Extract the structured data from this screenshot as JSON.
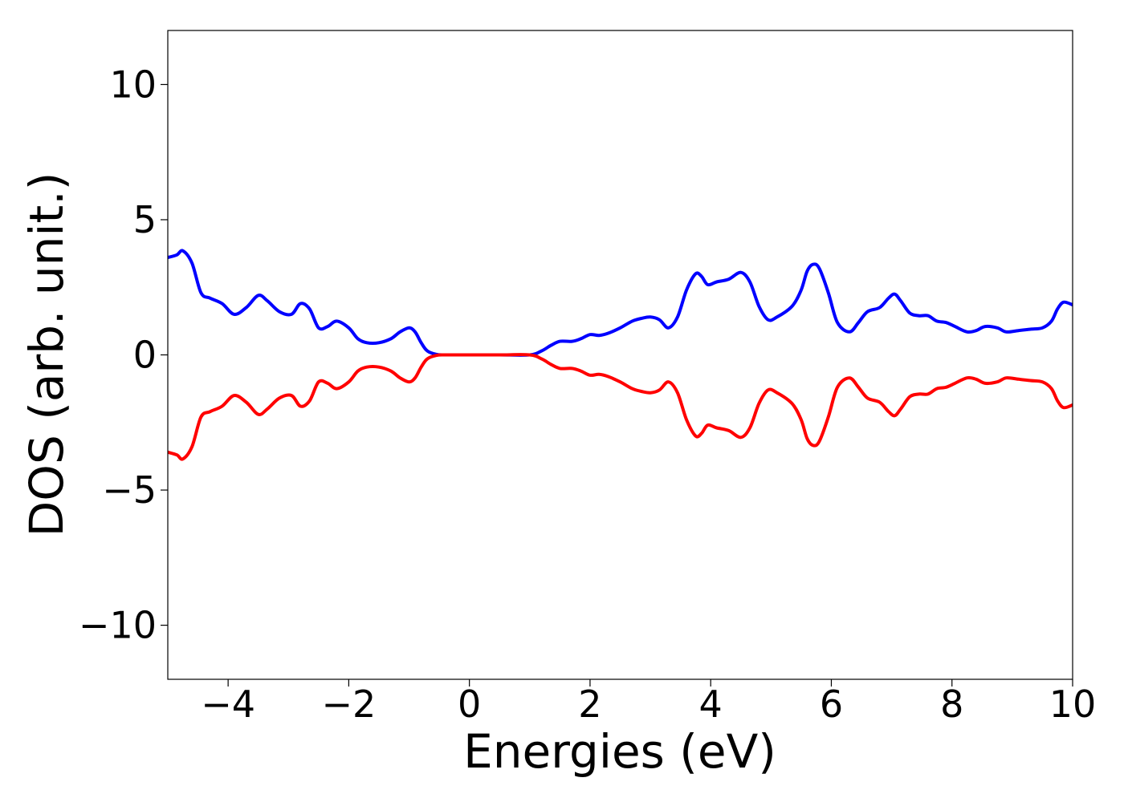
{
  "chart_data": {
    "type": "line",
    "title": "",
    "xlabel": "Energies (eV)",
    "ylabel": "DOS (arb. unit.)",
    "xlim": [
      -5,
      10
    ],
    "ylim": [
      -12,
      12
    ],
    "xticks": [
      -4,
      -2,
      0,
      2,
      4,
      6,
      8,
      10
    ],
    "xtick_labels": [
      "−4",
      "−2",
      "0",
      "2",
      "4",
      "6",
      "8",
      "10"
    ],
    "yticks": [
      10,
      5,
      0,
      -5,
      -10
    ],
    "ytick_labels": [
      "10",
      "5",
      "0",
      "−5",
      "−10"
    ],
    "grid": false,
    "legend": "none",
    "x": [
      -5.0,
      -4.85,
      -4.75,
      -4.6,
      -4.45,
      -4.3,
      -4.1,
      -3.9,
      -3.7,
      -3.5,
      -3.35,
      -3.15,
      -2.95,
      -2.8,
      -2.65,
      -2.5,
      -2.35,
      -2.2,
      -2.0,
      -1.85,
      -1.7,
      -1.5,
      -1.3,
      -1.15,
      -1.0,
      -0.9,
      -0.8,
      -0.7,
      -0.55,
      -0.4,
      0.0,
      0.5,
      1.0,
      1.2,
      1.35,
      1.5,
      1.7,
      1.85,
      2.0,
      2.15,
      2.3,
      2.5,
      2.7,
      2.85,
      3.0,
      3.15,
      3.3,
      3.45,
      3.6,
      3.75,
      3.85,
      3.95,
      4.1,
      4.3,
      4.5,
      4.65,
      4.8,
      4.95,
      5.1,
      5.35,
      5.5,
      5.6,
      5.7,
      5.8,
      5.95,
      6.1,
      6.3,
      6.45,
      6.6,
      6.8,
      6.95,
      7.05,
      7.15,
      7.3,
      7.45,
      7.6,
      7.75,
      7.9,
      8.05,
      8.25,
      8.4,
      8.55,
      8.75,
      8.9,
      9.1,
      9.3,
      9.5,
      9.65,
      9.75,
      9.85,
      10.0
    ],
    "series": [
      {
        "color": "#0000ff",
        "values": [
          3.6,
          3.7,
          3.85,
          3.4,
          2.3,
          2.1,
          1.9,
          1.5,
          1.75,
          2.2,
          2.0,
          1.6,
          1.5,
          1.9,
          1.7,
          1.0,
          1.05,
          1.25,
          1.0,
          0.6,
          0.45,
          0.45,
          0.6,
          0.85,
          1.0,
          0.85,
          0.45,
          0.15,
          0.02,
          0.0,
          0.0,
          0.0,
          0.0,
          0.15,
          0.35,
          0.5,
          0.5,
          0.6,
          0.75,
          0.72,
          0.8,
          1.0,
          1.25,
          1.35,
          1.4,
          1.3,
          1.0,
          1.4,
          2.4,
          3.0,
          2.9,
          2.6,
          2.7,
          2.8,
          3.05,
          2.7,
          1.8,
          1.3,
          1.4,
          1.8,
          2.4,
          3.1,
          3.35,
          3.2,
          2.3,
          1.2,
          0.85,
          1.2,
          1.6,
          1.75,
          2.1,
          2.25,
          2.0,
          1.55,
          1.45,
          1.45,
          1.25,
          1.2,
          1.05,
          0.85,
          0.9,
          1.05,
          1.0,
          0.85,
          0.9,
          0.95,
          1.0,
          1.25,
          1.7,
          1.95,
          1.85
        ]
      },
      {
        "color": "#ff0000",
        "values": [
          -3.6,
          -3.7,
          -3.85,
          -3.4,
          -2.3,
          -2.1,
          -1.9,
          -1.5,
          -1.75,
          -2.2,
          -2.0,
          -1.6,
          -1.5,
          -1.9,
          -1.7,
          -1.0,
          -1.05,
          -1.25,
          -1.0,
          -0.6,
          -0.45,
          -0.45,
          -0.6,
          -0.85,
          -1.0,
          -0.85,
          -0.45,
          -0.15,
          -0.02,
          0.0,
          0.0,
          0.0,
          0.0,
          -0.15,
          -0.35,
          -0.5,
          -0.5,
          -0.6,
          -0.75,
          -0.72,
          -0.8,
          -1.0,
          -1.25,
          -1.35,
          -1.4,
          -1.3,
          -1.0,
          -1.4,
          -2.4,
          -3.0,
          -2.9,
          -2.6,
          -2.7,
          -2.8,
          -3.05,
          -2.7,
          -1.8,
          -1.3,
          -1.4,
          -1.8,
          -2.4,
          -3.1,
          -3.35,
          -3.2,
          -2.3,
          -1.2,
          -0.85,
          -1.2,
          -1.6,
          -1.75,
          -2.1,
          -2.25,
          -2.0,
          -1.55,
          -1.45,
          -1.45,
          -1.25,
          -1.2,
          -1.05,
          -0.85,
          -0.9,
          -1.05,
          -1.0,
          -0.85,
          -0.9,
          -0.95,
          -1.0,
          -1.25,
          -1.7,
          -1.95,
          -1.85
        ]
      }
    ]
  }
}
